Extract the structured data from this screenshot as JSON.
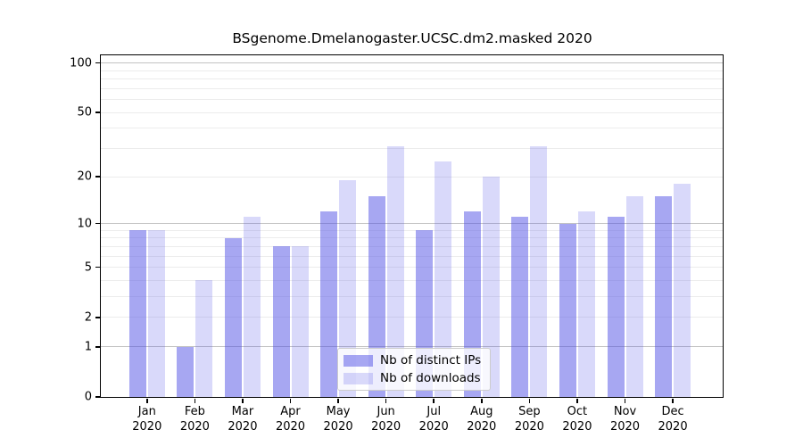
{
  "figure": {
    "title": "BSgenome.Dmelanogaster.UCSC.dm2.masked 2020"
  },
  "chart_data": {
    "type": "bar",
    "title": "BSgenome.Dmelanogaster.UCSC.dm2.masked 2020",
    "categories": [
      "Jan 2020",
      "Feb 2020",
      "Mar 2020",
      "Apr 2020",
      "May 2020",
      "Jun 2020",
      "Jul 2020",
      "Aug 2020",
      "Sep 2020",
      "Oct 2020",
      "Nov 2020",
      "Dec 2020"
    ],
    "series": [
      {
        "name": "Nb of distinct IPs",
        "color": "rgba(80,80,230,0.5)",
        "values": [
          9,
          1,
          8,
          7,
          12,
          15,
          9,
          12,
          11,
          10,
          11,
          15
        ]
      },
      {
        "name": "Nb of downloads",
        "color": "rgba(80,80,230,0.22)",
        "values": [
          9,
          4,
          11,
          7,
          19,
          31,
          25,
          20,
          31,
          12,
          15,
          18
        ]
      }
    ],
    "xlabel": "",
    "ylabel": "",
    "yscale": "log1p",
    "ylim": [
      0,
      111.5
    ],
    "ytick_values": [
      0,
      1,
      2,
      5,
      10,
      20,
      50,
      100
    ],
    "ytick_labels": [
      "0",
      "1",
      "2",
      "5",
      "10",
      "20",
      "50",
      "100"
    ],
    "major_gridlines": [
      1,
      10,
      100
    ],
    "minor_gridlines": [
      2,
      3,
      4,
      5,
      6,
      7,
      8,
      9,
      20,
      30,
      40,
      50,
      60,
      70,
      80,
      90
    ],
    "grid": true,
    "legend_position": "lower center",
    "colors": {
      "bar_distinct_ips": "rgba(80,80,230,0.5)",
      "bar_downloads": "rgba(80,80,230,0.22)",
      "major_grid": "#c3c3c3",
      "minor_grid": "#ececec",
      "frame": "#000000",
      "background": "#ffffff"
    }
  }
}
